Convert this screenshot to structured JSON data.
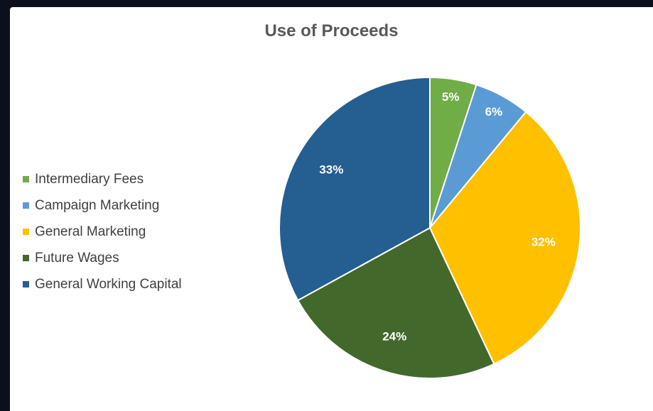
{
  "chart_data": {
    "type": "pie",
    "title": "Use of Proceeds",
    "categories": [
      "Intermediary Fees",
      "Campaign Marketing",
      "General Marketing",
      "Future Wages",
      "General Working Capital"
    ],
    "values": [
      5,
      6,
      32,
      24,
      33
    ],
    "labels": [
      "5%",
      "6%",
      "32%",
      "24%",
      "33%"
    ],
    "colors": [
      "#70ad47",
      "#5b9bd5",
      "#ffc000",
      "#43682b",
      "#255e91"
    ],
    "legend_position": "left",
    "start_angle": "12 o'clock",
    "direction": "clockwise"
  }
}
